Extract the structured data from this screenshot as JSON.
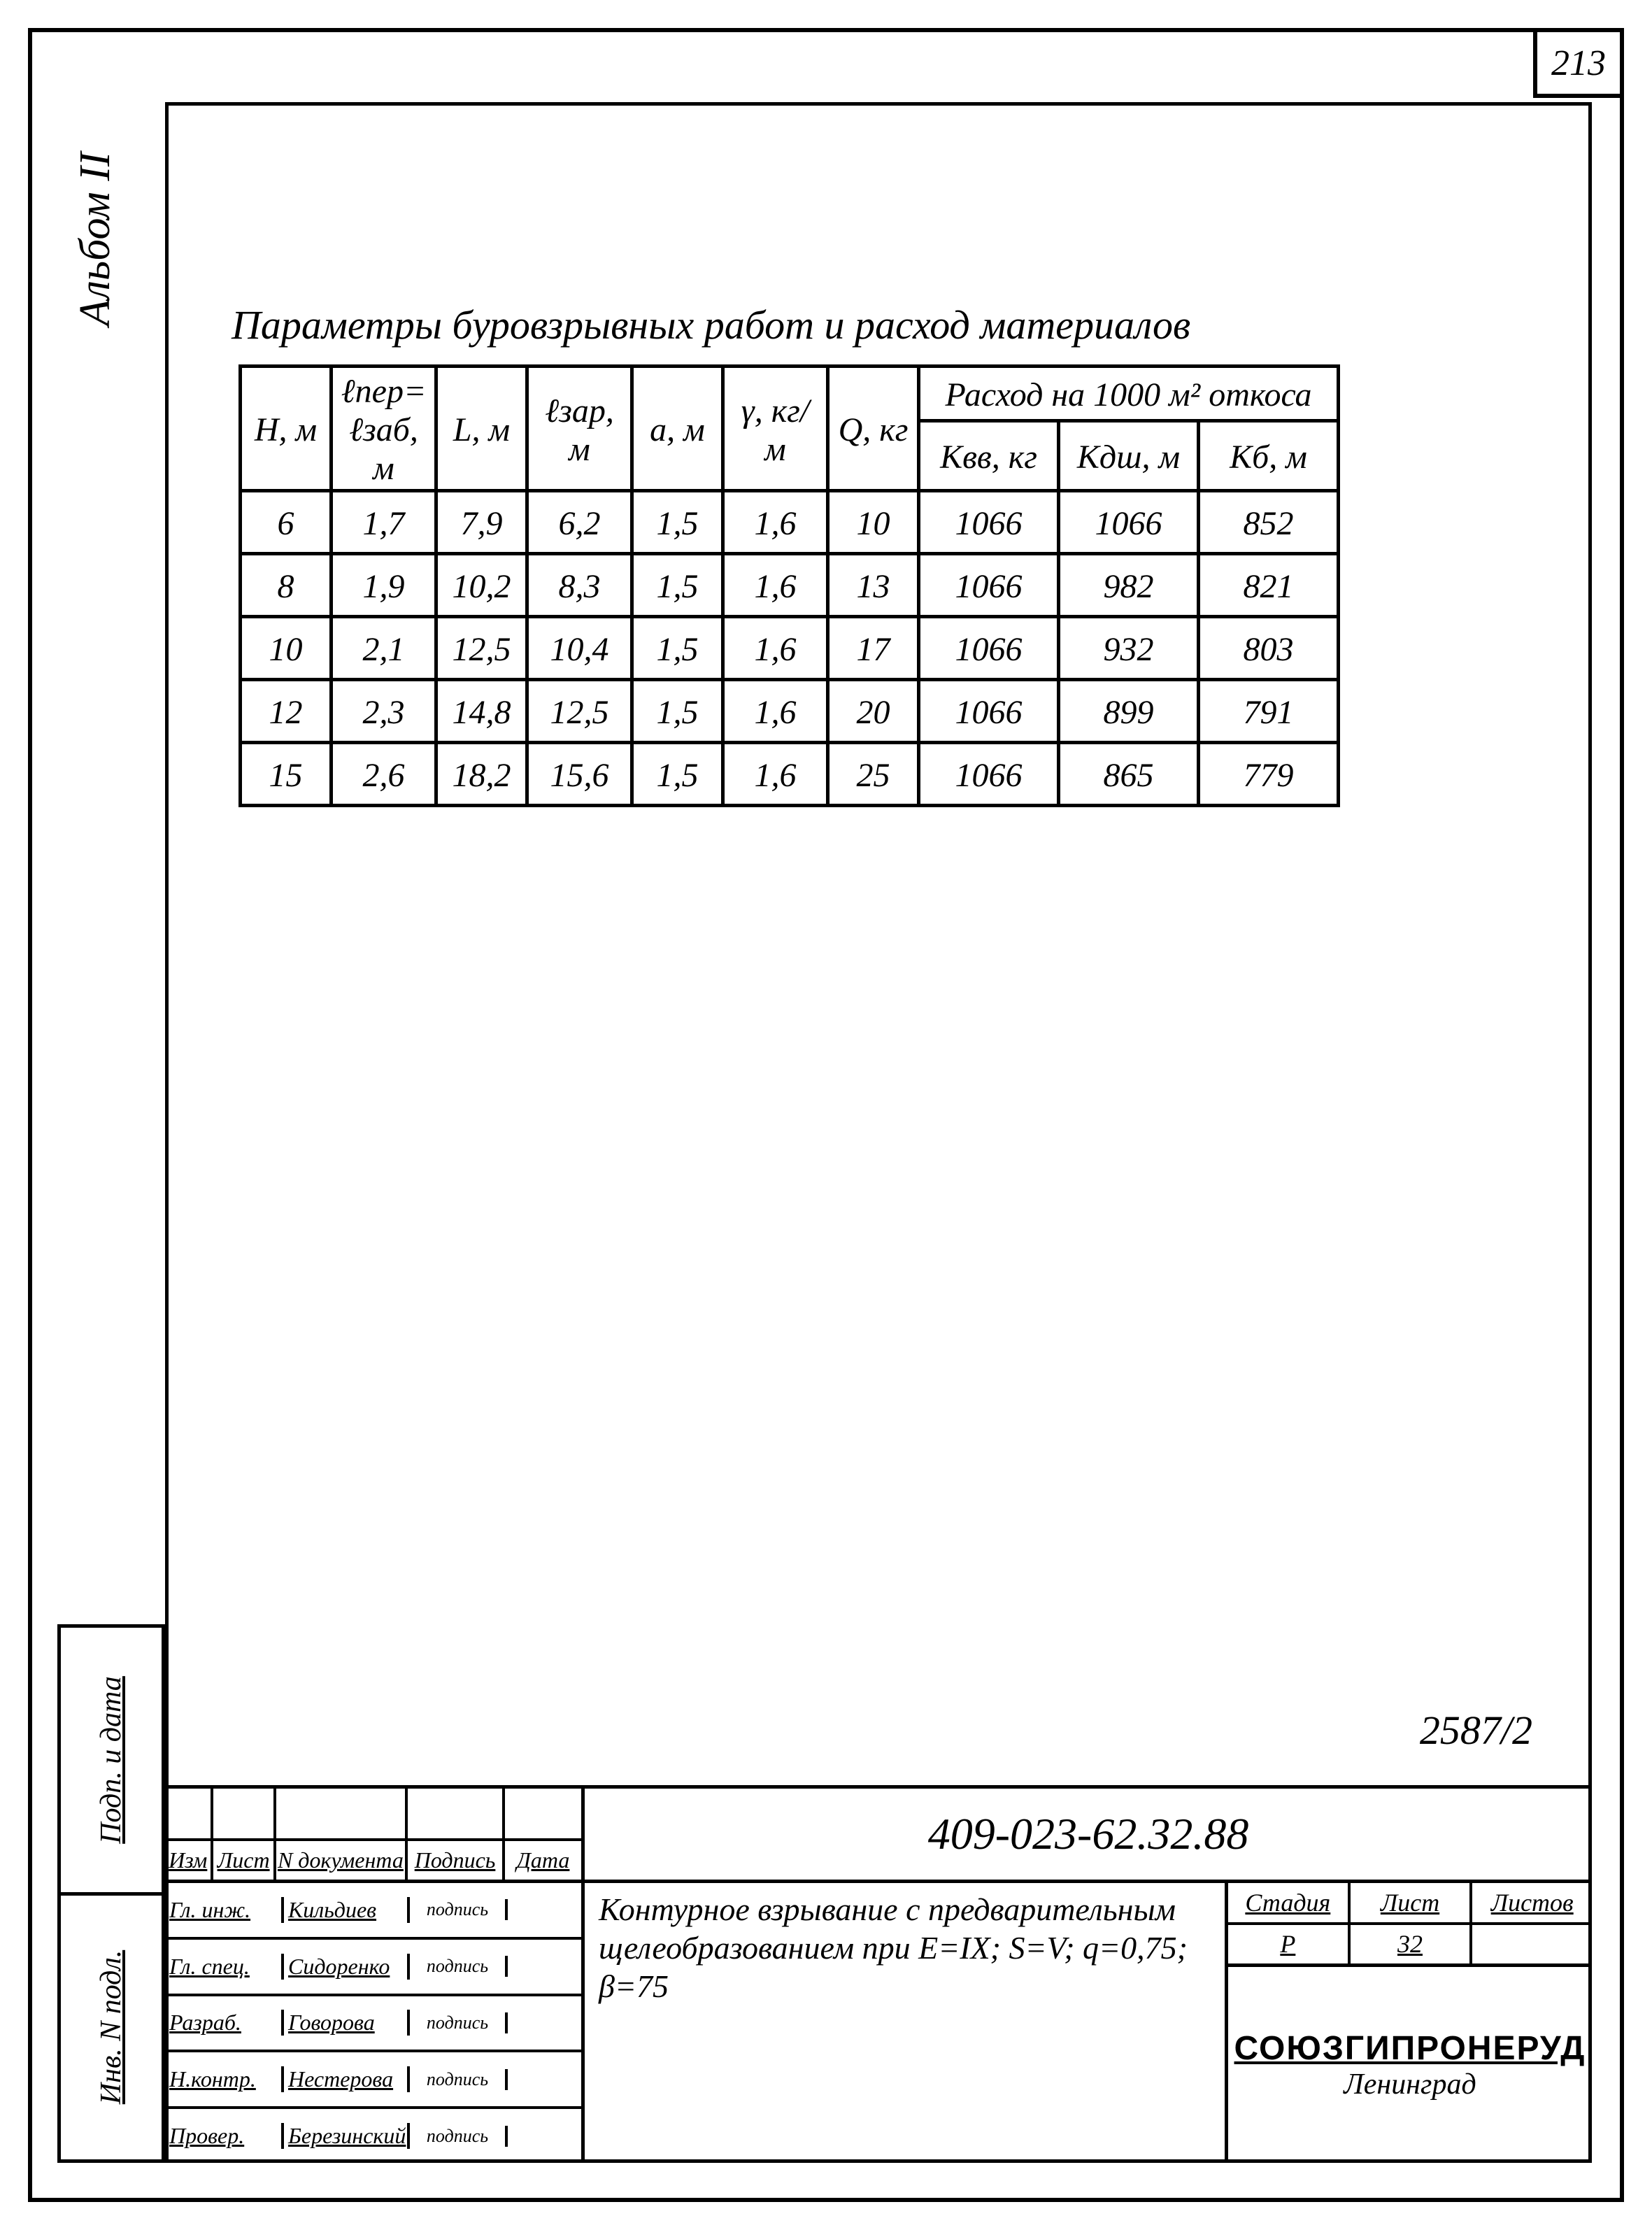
{
  "page_number": "213",
  "album_label": "Альбом II",
  "title": "Параметры буровзрывных работ и расход материалов",
  "table": {
    "header_group": "Расход на 1000 м² откоса",
    "columns": [
      "H, м",
      "ℓпер= ℓзаб, м",
      "L, м",
      "ℓзар, м",
      "a, м",
      "γ, кг/м",
      "Q, кг",
      "Kвв, кг",
      "Kдш, м",
      "Kб, м"
    ],
    "rows": [
      [
        "6",
        "1,7",
        "7,9",
        "6,2",
        "1,5",
        "1,6",
        "10",
        "1066",
        "1066",
        "852"
      ],
      [
        "8",
        "1,9",
        "10,2",
        "8,3",
        "1,5",
        "1,6",
        "13",
        "1066",
        "982",
        "821"
      ],
      [
        "10",
        "2,1",
        "12,5",
        "10,4",
        "1,5",
        "1,6",
        "17",
        "1066",
        "932",
        "803"
      ],
      [
        "12",
        "2,3",
        "14,8",
        "12,5",
        "1,5",
        "1,6",
        "20",
        "1066",
        "899",
        "791"
      ],
      [
        "15",
        "2,6",
        "18,2",
        "15,6",
        "1,5",
        "1,6",
        "25",
        "1066",
        "865",
        "779"
      ]
    ]
  },
  "stamp_number": "2587/2",
  "side_labels": [
    "Инв. N подл.",
    "Подп. и дата"
  ],
  "rev_header": [
    "Изм",
    "Лист",
    "N документа",
    "Подпись",
    "Дата"
  ],
  "doc_number": "409-023-62.32.88",
  "roles": [
    {
      "role": "Гл. инж.",
      "name": "Кильдиев",
      "sign": "подпись"
    },
    {
      "role": "Гл. спец.",
      "name": "Сидоренко",
      "sign": "подпись"
    },
    {
      "role": "Разраб.",
      "name": "Говорова",
      "sign": "подпись"
    },
    {
      "role": "Н.контр.",
      "name": "Нестерова",
      "sign": "подпись"
    },
    {
      "role": "Провер.",
      "name": "Березинский",
      "sign": "подпись"
    }
  ],
  "description": "Контурное взрывание с предварительным щелеобразованием при E=IX; S=V; q=0,75; β=75",
  "stage": {
    "labels": [
      "Стадия",
      "Лист",
      "Листов"
    ],
    "values": [
      "Р",
      "32",
      ""
    ]
  },
  "org": {
    "name": "СОЮЗГИПРОНЕРУД",
    "city": "Ленинград"
  }
}
